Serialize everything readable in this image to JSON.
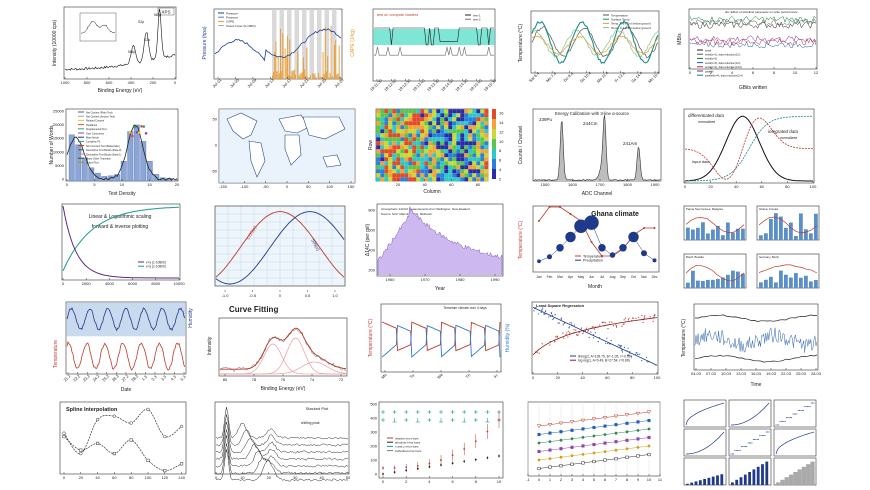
{
  "colors": {
    "blue": "#2b5fb0",
    "red": "#c8302a",
    "teal": "#2aa098",
    "orange": "#e89b2f",
    "navy": "#283c8c",
    "purple": "#8a62c8",
    "green": "#3a9a3a",
    "gray": "#555555"
  },
  "chart_data": [
    {
      "id": "xps",
      "type": "line",
      "label": "XPS",
      "xlabel": "Binding Energy (eV)",
      "ylabel": "Intensity (10000 cps)",
      "peaks": [
        "S2p",
        "S2s",
        "Ni3p",
        "Ni2p"
      ],
      "xticks": [
        "1000",
        "800",
        "600",
        "400",
        "200",
        "0"
      ]
    },
    {
      "id": "pressure",
      "type": "line",
      "xlabel": "",
      "ylabel": "Pressure (hpa)",
      "ylabel2": "CAPE (J/kg)",
      "legend": [
        "Pressure",
        "Pressure",
        "CAPE",
        "Cloud Cover (0-100%)"
      ],
      "xticks": [
        "Jul-01",
        "Jul-05",
        "Jul-09",
        "Jul-13",
        "Jul-17",
        "Jul-21",
        "Jul-25",
        "Jul-29"
      ]
    },
    {
      "id": "clusters",
      "type": "line",
      "title": "test on compute clusters",
      "legend": [
        "test-1",
        "test-2"
      ],
      "xticks": [
        "19:11:30",
        "19:12:00",
        "19:12:30",
        "19:13:00",
        "19:13:30",
        "19:14:00",
        "19:14:30",
        "19:15:00",
        "19:15:30"
      ]
    },
    {
      "id": "surface",
      "type": "line",
      "ylabel": "Temperature (°C)",
      "legend": [
        "Temperature",
        "Surface Temp.",
        "Temp. 0.3-0.1m below ground",
        "Temp. 0.1-0.4m below ground"
      ],
      "xticks": [
        "Sat 6.4",
        "Mo 7.4",
        "Do 9.4",
        "Sa 10.4",
        "Mo 11.4",
        "Fr 13.4",
        "Sa 14.4",
        "Mo 15.4"
      ]
    },
    {
      "id": "gbits",
      "type": "line",
      "title": "dio: Effect of writeEnd parameter on write performance",
      "xlabel": "GBits written",
      "ylabel": "MB/s",
      "legend": [
        "serial",
        "serial(c=1), data reduction(1/1)",
        "serial(c=2)",
        "serial(c=2), data reduction(1/2)",
        "serial(c=2), data reduction(1/10)",
        "parallel",
        "parallel(c=4), data reduction(1/4)"
      ]
    },
    {
      "id": "words",
      "type": "bar",
      "xlabel": "Text Density",
      "ylabel": "Number of Words",
      "legend": [
        "Net Content (Plain Text)",
        "Net Content (Anchor Text)",
        "Related Content",
        "Headlines",
        "Supplemental Text",
        "User Comments",
        "Main Article",
        "Complete Fit",
        "Non-Content Text (Boilerplate)",
        "Descriptive Text Blocks (Beta-0)",
        "Descriptive Text Blocks (Beta-1)",
        "Every Other Transition",
        "Linked Text"
      ],
      "xticks": [
        "0",
        "5",
        "10",
        "15",
        "20"
      ],
      "yticks": [
        "0",
        "5000",
        "10000",
        "15000",
        "20000",
        "25000"
      ]
    },
    {
      "id": "worldmap",
      "type": "map",
      "xticks": [
        "-150",
        "-100",
        "-50",
        "0",
        "50",
        "100",
        "150"
      ],
      "yticks": [
        "-50",
        "0",
        "50"
      ]
    },
    {
      "id": "heatmap",
      "type": "heatmap",
      "xlabel": "Column",
      "ylabel": "Row",
      "xticks": [
        "20",
        "40",
        "60",
        "80"
      ],
      "yticks": [
        "20",
        "40",
        "60",
        "80"
      ],
      "scale": [
        "2",
        "4",
        "6",
        "8",
        "10",
        "12",
        "14",
        "16"
      ]
    },
    {
      "id": "adc",
      "type": "line",
      "title": "Energy Calibration with 3-line α-source",
      "xlabel": "ADC Channel",
      "ylabel": "Counts / Channel",
      "peaks": [
        "239Pu",
        "244Cm",
        "241Am"
      ],
      "xticks": [
        "1500",
        "1600",
        "1700",
        "1800",
        "1900"
      ]
    },
    {
      "id": "gaussian",
      "type": "line",
      "labels": [
        "differentiated data",
        "normalized",
        "integrated data",
        "normalized",
        "input data"
      ],
      "xticks": [
        "0",
        "20",
        "40",
        "60",
        "80",
        "100"
      ]
    },
    {
      "id": "loglin",
      "type": "line",
      "title": "Linear & Logarithmic scaling forward & inverse plotting",
      "legend": [
        "x+y (1-10800)",
        "x+y (1-10800)"
      ],
      "xticks": [
        "0",
        "2000",
        "4000",
        "6000",
        "8000",
        "10000"
      ]
    },
    {
      "id": "trig",
      "type": "line",
      "labels": [
        "COS(x)",
        "SIN(x)"
      ],
      "xticks": [
        "-1.0",
        "-0.5",
        "0",
        "0.5",
        "1.0"
      ]
    },
    {
      "id": "co2",
      "type": "area",
      "title": "Atmospheric 14CO2 measurements from Wellington, New Zealand",
      "subtitle": "Source: M.R. Manning, W.H. Melhuish",
      "xlabel": "Year",
      "ylabel": "Δ14C (per mil)",
      "xticks": [
        "1960",
        "1970",
        "1980",
        "1990"
      ],
      "yticks": [
        "200",
        "400",
        "600",
        "800"
      ]
    },
    {
      "id": "ghana",
      "type": "line",
      "title": "Ghana climate",
      "xlabel": "Month",
      "ylabel": "Temperature (°C)",
      "categories": [
        "Jan",
        "Feb",
        "Mar",
        "Apr",
        "May",
        "Jun",
        "Jul",
        "Aug",
        "Sep",
        "Oct",
        "Nov",
        "Dec"
      ],
      "temperature": [
        27.5,
        28.5,
        28.5,
        28,
        27.5,
        26,
        25,
        25,
        25.5,
        26.5,
        27,
        27
      ],
      "precipitation": [
        15,
        40,
        90,
        150,
        210,
        230,
        90,
        50,
        90,
        150,
        60,
        20
      ],
      "legend": [
        "Temperature",
        "Precipitation"
      ]
    },
    {
      "id": "cities",
      "type": "bar",
      "panels": [
        "Papua New Guinea, Malaysia",
        "Ghana, Kumasi",
        "Brazil, Brasilia",
        "Germany, Berlin"
      ]
    },
    {
      "id": "datebars",
      "type": "line",
      "xlabel": "Date",
      "ylabel": "Temperature",
      "ylabel2": "Humidity",
      "xticks": [
        "21.2",
        "22.2",
        "23.2",
        "24.2",
        "25.2",
        "26.2",
        "27.2",
        "28.2",
        "1.3",
        "2.3",
        "3.3",
        "4.3",
        "5.3"
      ]
    },
    {
      "id": "curvefit",
      "type": "line",
      "title": "Curve Fitting",
      "xlabel": "Binding Energy (eV)",
      "ylabel": "Intensity",
      "xticks": [
        "80",
        "78",
        "76",
        "74",
        "72"
      ]
    },
    {
      "id": "terrarium",
      "type": "line",
      "title": "Terrarium climate over 4 days",
      "ylabel": "Temperature (°C)",
      "ylabel2": "Humidity (%)"
    },
    {
      "id": "lsq",
      "type": "scatter",
      "title": "Least Square Regression",
      "legend": [
        "linreg(2, A=139.75, B=-1.05, r=-0.92)",
        "log reg(1, A=0.49, B=27.54, r=0.89)"
      ],
      "xticks": [
        "0",
        "20",
        "40",
        "60",
        "80",
        "100"
      ]
    },
    {
      "id": "tempband",
      "type": "line",
      "xlabel": "Time",
      "ylabel": "Temperature (°C)",
      "xticks": [
        "04.03",
        "07.03",
        "10.03",
        "13.03",
        "16.03",
        "19.03",
        "22.03",
        "25.03",
        "28.03"
      ]
    },
    {
      "id": "spline",
      "type": "line",
      "title": "Spline Interpolation",
      "x": [
        0,
        20,
        40,
        60,
        80,
        100,
        120,
        140
      ],
      "series": [
        {
          "name": "upper",
          "values": [
            120,
            60,
            160,
            170,
            150,
            190,
            110,
            140
          ]
        },
        {
          "name": "lower",
          "values": [
            110,
            70,
            90,
            60,
            100,
            40,
            10,
            30
          ]
        }
      ]
    },
    {
      "id": "stacked",
      "type": "line",
      "title": "Stacked Plot",
      "labels": [
        "shifting peak"
      ],
      "xticks": [
        "0",
        "10",
        "20",
        "30",
        "40",
        "50"
      ]
    },
    {
      "id": "errorbars",
      "type": "line",
      "legend": [
        "relative error bars",
        "absolute error bars",
        "x and y error bars",
        "individual error bars"
      ],
      "xticks": [
        "0",
        "2",
        "4",
        "6",
        "8",
        "10"
      ],
      "yticks": [
        "0",
        "100",
        "200",
        "300",
        "400",
        "500"
      ]
    },
    {
      "id": "markers",
      "type": "line",
      "xticks": [
        "-1",
        "0",
        "1",
        "2",
        "3",
        "4",
        "5",
        "6",
        "7",
        "8",
        "9",
        "10",
        "11"
      ],
      "series_count": 6
    },
    {
      "id": "stepgrid",
      "type": "bar",
      "panels": 9
    }
  ]
}
